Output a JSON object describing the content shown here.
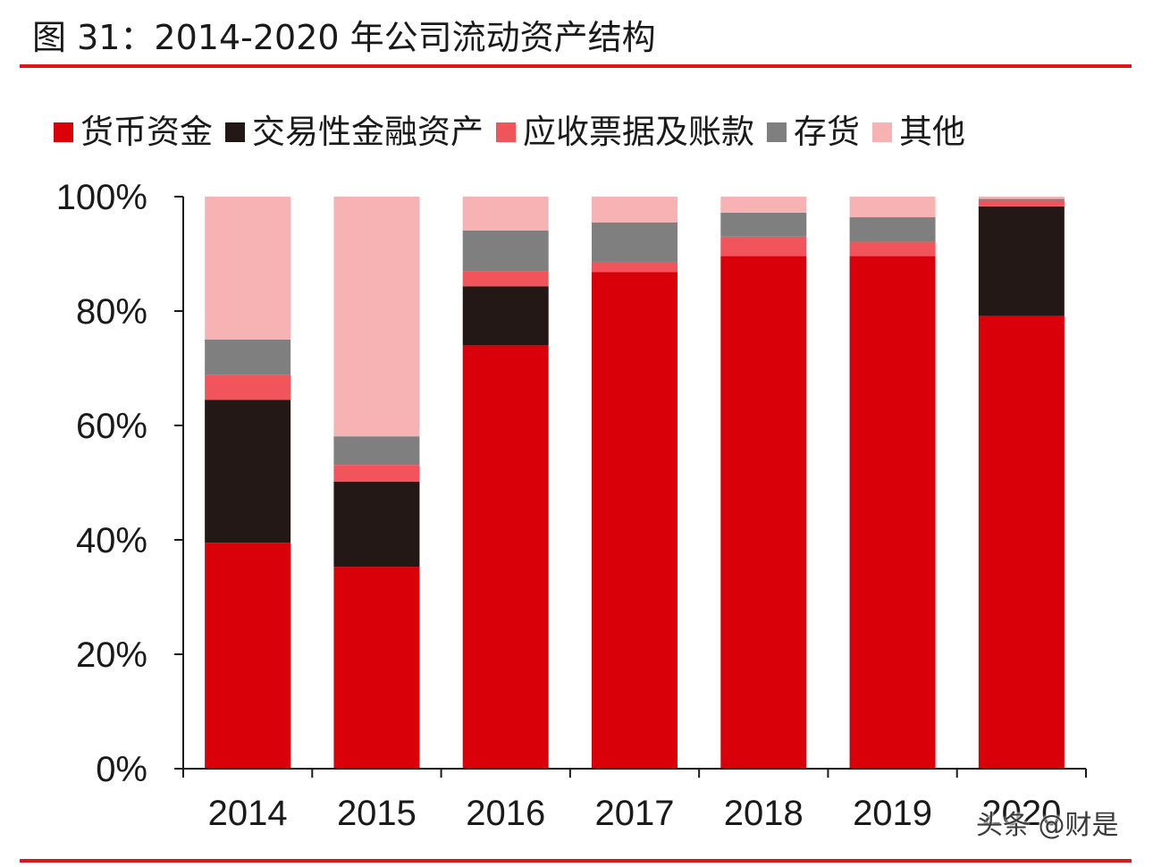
{
  "figure": {
    "title": "图 31：2014-2020 年公司流动资产结构",
    "accent_color": "#d9181c",
    "watermark": "头条 @财是"
  },
  "chart_data": {
    "type": "bar",
    "stacked": true,
    "percent": true,
    "title": "图 31：2014-2020 年公司流动资产结构",
    "xlabel": "",
    "ylabel": "",
    "ylim": [
      0,
      100
    ],
    "y_ticks": [
      "0%",
      "20%",
      "40%",
      "60%",
      "80%",
      "100%"
    ],
    "y_tick_values": [
      0,
      20,
      40,
      60,
      80,
      100
    ],
    "legend_position": "top",
    "grid": false,
    "categories": [
      "2014",
      "2015",
      "2016",
      "2017",
      "2018",
      "2019",
      "2020"
    ],
    "series": [
      {
        "name": "货币资金",
        "color": "#d9000a",
        "values": [
          39.5,
          35.3,
          74.0,
          86.8,
          89.6,
          89.6,
          79.1
        ]
      },
      {
        "name": "交易性金融资产",
        "color": "#231815",
        "values": [
          25.0,
          14.9,
          10.3,
          0.0,
          0.0,
          0.0,
          19.2
        ]
      },
      {
        "name": "应收票据及账款",
        "color": "#f2545b",
        "values": [
          4.3,
          2.9,
          2.6,
          1.8,
          3.4,
          2.5,
          1.0
        ]
      },
      {
        "name": "存货",
        "color": "#7f7f7f",
        "values": [
          6.2,
          5.0,
          7.2,
          6.9,
          4.2,
          4.3,
          0.3
        ]
      },
      {
        "name": "其他",
        "color": "#f7b3b3",
        "values": [
          25.0,
          41.9,
          5.9,
          4.5,
          2.8,
          3.6,
          0.4
        ]
      }
    ]
  }
}
